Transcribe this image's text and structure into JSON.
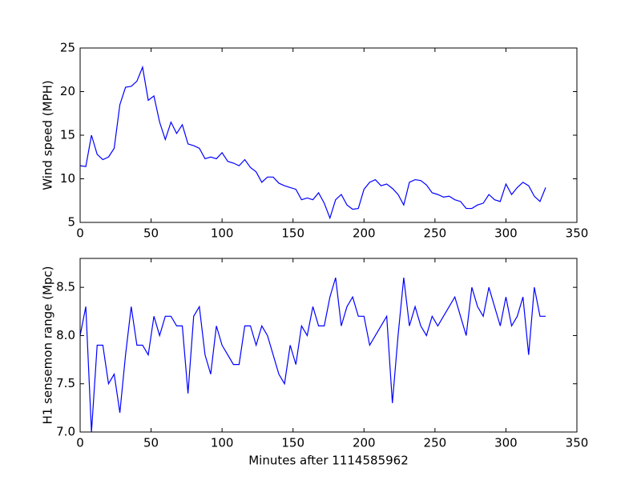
{
  "chart_data": [
    {
      "type": "line",
      "ylabel": "Wind speed (MPH)",
      "color": "#0000ff",
      "x": [
        0,
        4,
        8,
        12,
        16,
        20,
        24,
        28,
        32,
        36,
        40,
        44,
        48,
        52,
        56,
        60,
        64,
        68,
        72,
        76,
        80,
        84,
        88,
        92,
        96,
        100,
        104,
        108,
        112,
        116,
        120,
        124,
        128,
        132,
        136,
        140,
        144,
        148,
        152,
        156,
        160,
        164,
        168,
        172,
        176,
        180,
        184,
        188,
        192,
        196,
        200,
        204,
        208,
        212,
        216,
        220,
        224,
        228,
        232,
        236,
        240,
        244,
        248,
        252,
        256,
        260,
        264,
        268,
        272,
        276,
        280,
        284,
        288,
        292,
        296,
        300,
        304,
        308,
        312,
        316,
        320,
        324,
        328
      ],
      "values": [
        11.5,
        11.4,
        15.0,
        12.8,
        12.2,
        12.5,
        13.5,
        18.5,
        20.5,
        20.6,
        21.2,
        22.8,
        19.0,
        19.5,
        16.5,
        14.5,
        16.5,
        15.2,
        16.2,
        14.0,
        13.8,
        13.5,
        12.3,
        12.5,
        12.3,
        13.0,
        12.0,
        11.8,
        11.5,
        12.2,
        11.3,
        10.8,
        9.6,
        10.2,
        10.2,
        9.5,
        9.2,
        9.0,
        8.8,
        7.6,
        7.8,
        7.6,
        8.4,
        7.2,
        5.5,
        7.6,
        8.2,
        7.0,
        6.5,
        6.6,
        8.8,
        9.6,
        9.9,
        9.2,
        9.4,
        8.9,
        8.2,
        7.0,
        9.6,
        9.9,
        9.8,
        9.3,
        8.4,
        8.2,
        7.9,
        8.0,
        7.6,
        7.4,
        6.6,
        6.6,
        7.0,
        7.2,
        8.2,
        7.6,
        7.4,
        9.4,
        8.2,
        9.0,
        9.6,
        9.2,
        8.0,
        7.4,
        9.0
      ],
      "xlim": [
        0,
        350
      ],
      "xticks": [
        0,
        50,
        100,
        150,
        200,
        250,
        300,
        350
      ],
      "ylim": [
        5,
        25
      ],
      "yticks": [
        5,
        10,
        15,
        20,
        25
      ]
    },
    {
      "type": "line",
      "ylabel": "H1 sensemon range (Mpc)",
      "xlabel": "Minutes after 1114585962",
      "color": "#0000ff",
      "x": [
        0,
        4,
        8,
        12,
        16,
        20,
        24,
        28,
        32,
        36,
        40,
        44,
        48,
        52,
        56,
        60,
        64,
        68,
        72,
        76,
        80,
        84,
        88,
        92,
        96,
        100,
        104,
        108,
        112,
        116,
        120,
        124,
        128,
        132,
        136,
        140,
        144,
        148,
        152,
        156,
        160,
        164,
        168,
        172,
        176,
        180,
        184,
        188,
        192,
        196,
        200,
        204,
        208,
        212,
        216,
        220,
        224,
        228,
        232,
        236,
        240,
        244,
        248,
        252,
        256,
        260,
        264,
        268,
        272,
        276,
        280,
        284,
        288,
        292,
        296,
        300,
        304,
        308,
        312,
        316,
        320,
        324,
        328
      ],
      "values": [
        8.0,
        8.3,
        7.0,
        7.9,
        7.9,
        7.5,
        7.6,
        7.2,
        7.8,
        8.3,
        7.9,
        7.9,
        7.8,
        8.2,
        8.0,
        8.2,
        8.2,
        8.1,
        8.1,
        7.4,
        8.2,
        8.3,
        7.8,
        7.6,
        8.1,
        7.9,
        7.8,
        7.7,
        7.7,
        8.1,
        8.1,
        7.9,
        8.1,
        8.0,
        7.8,
        7.6,
        7.5,
        7.9,
        7.7,
        8.1,
        8.0,
        8.3,
        8.1,
        8.1,
        8.4,
        8.6,
        8.1,
        8.3,
        8.4,
        8.2,
        8.2,
        7.9,
        8.0,
        8.1,
        8.2,
        7.3,
        8.0,
        8.6,
        8.1,
        8.3,
        8.1,
        8.0,
        8.2,
        8.1,
        8.2,
        8.3,
        8.4,
        8.2,
        8.0,
        8.5,
        8.3,
        8.2,
        8.5,
        8.3,
        8.1,
        8.4,
        8.1,
        8.2,
        8.4,
        7.8,
        8.5,
        8.2,
        8.2
      ],
      "xlim": [
        0,
        350
      ],
      "xticks": [
        0,
        50,
        100,
        150,
        200,
        250,
        300,
        350
      ],
      "ylim": [
        7,
        8.8
      ],
      "yticks": [
        {
          "value": 7,
          "label": "7.0"
        },
        7.5,
        {
          "value": 8,
          "label": "8.0"
        },
        8.5
      ]
    }
  ]
}
